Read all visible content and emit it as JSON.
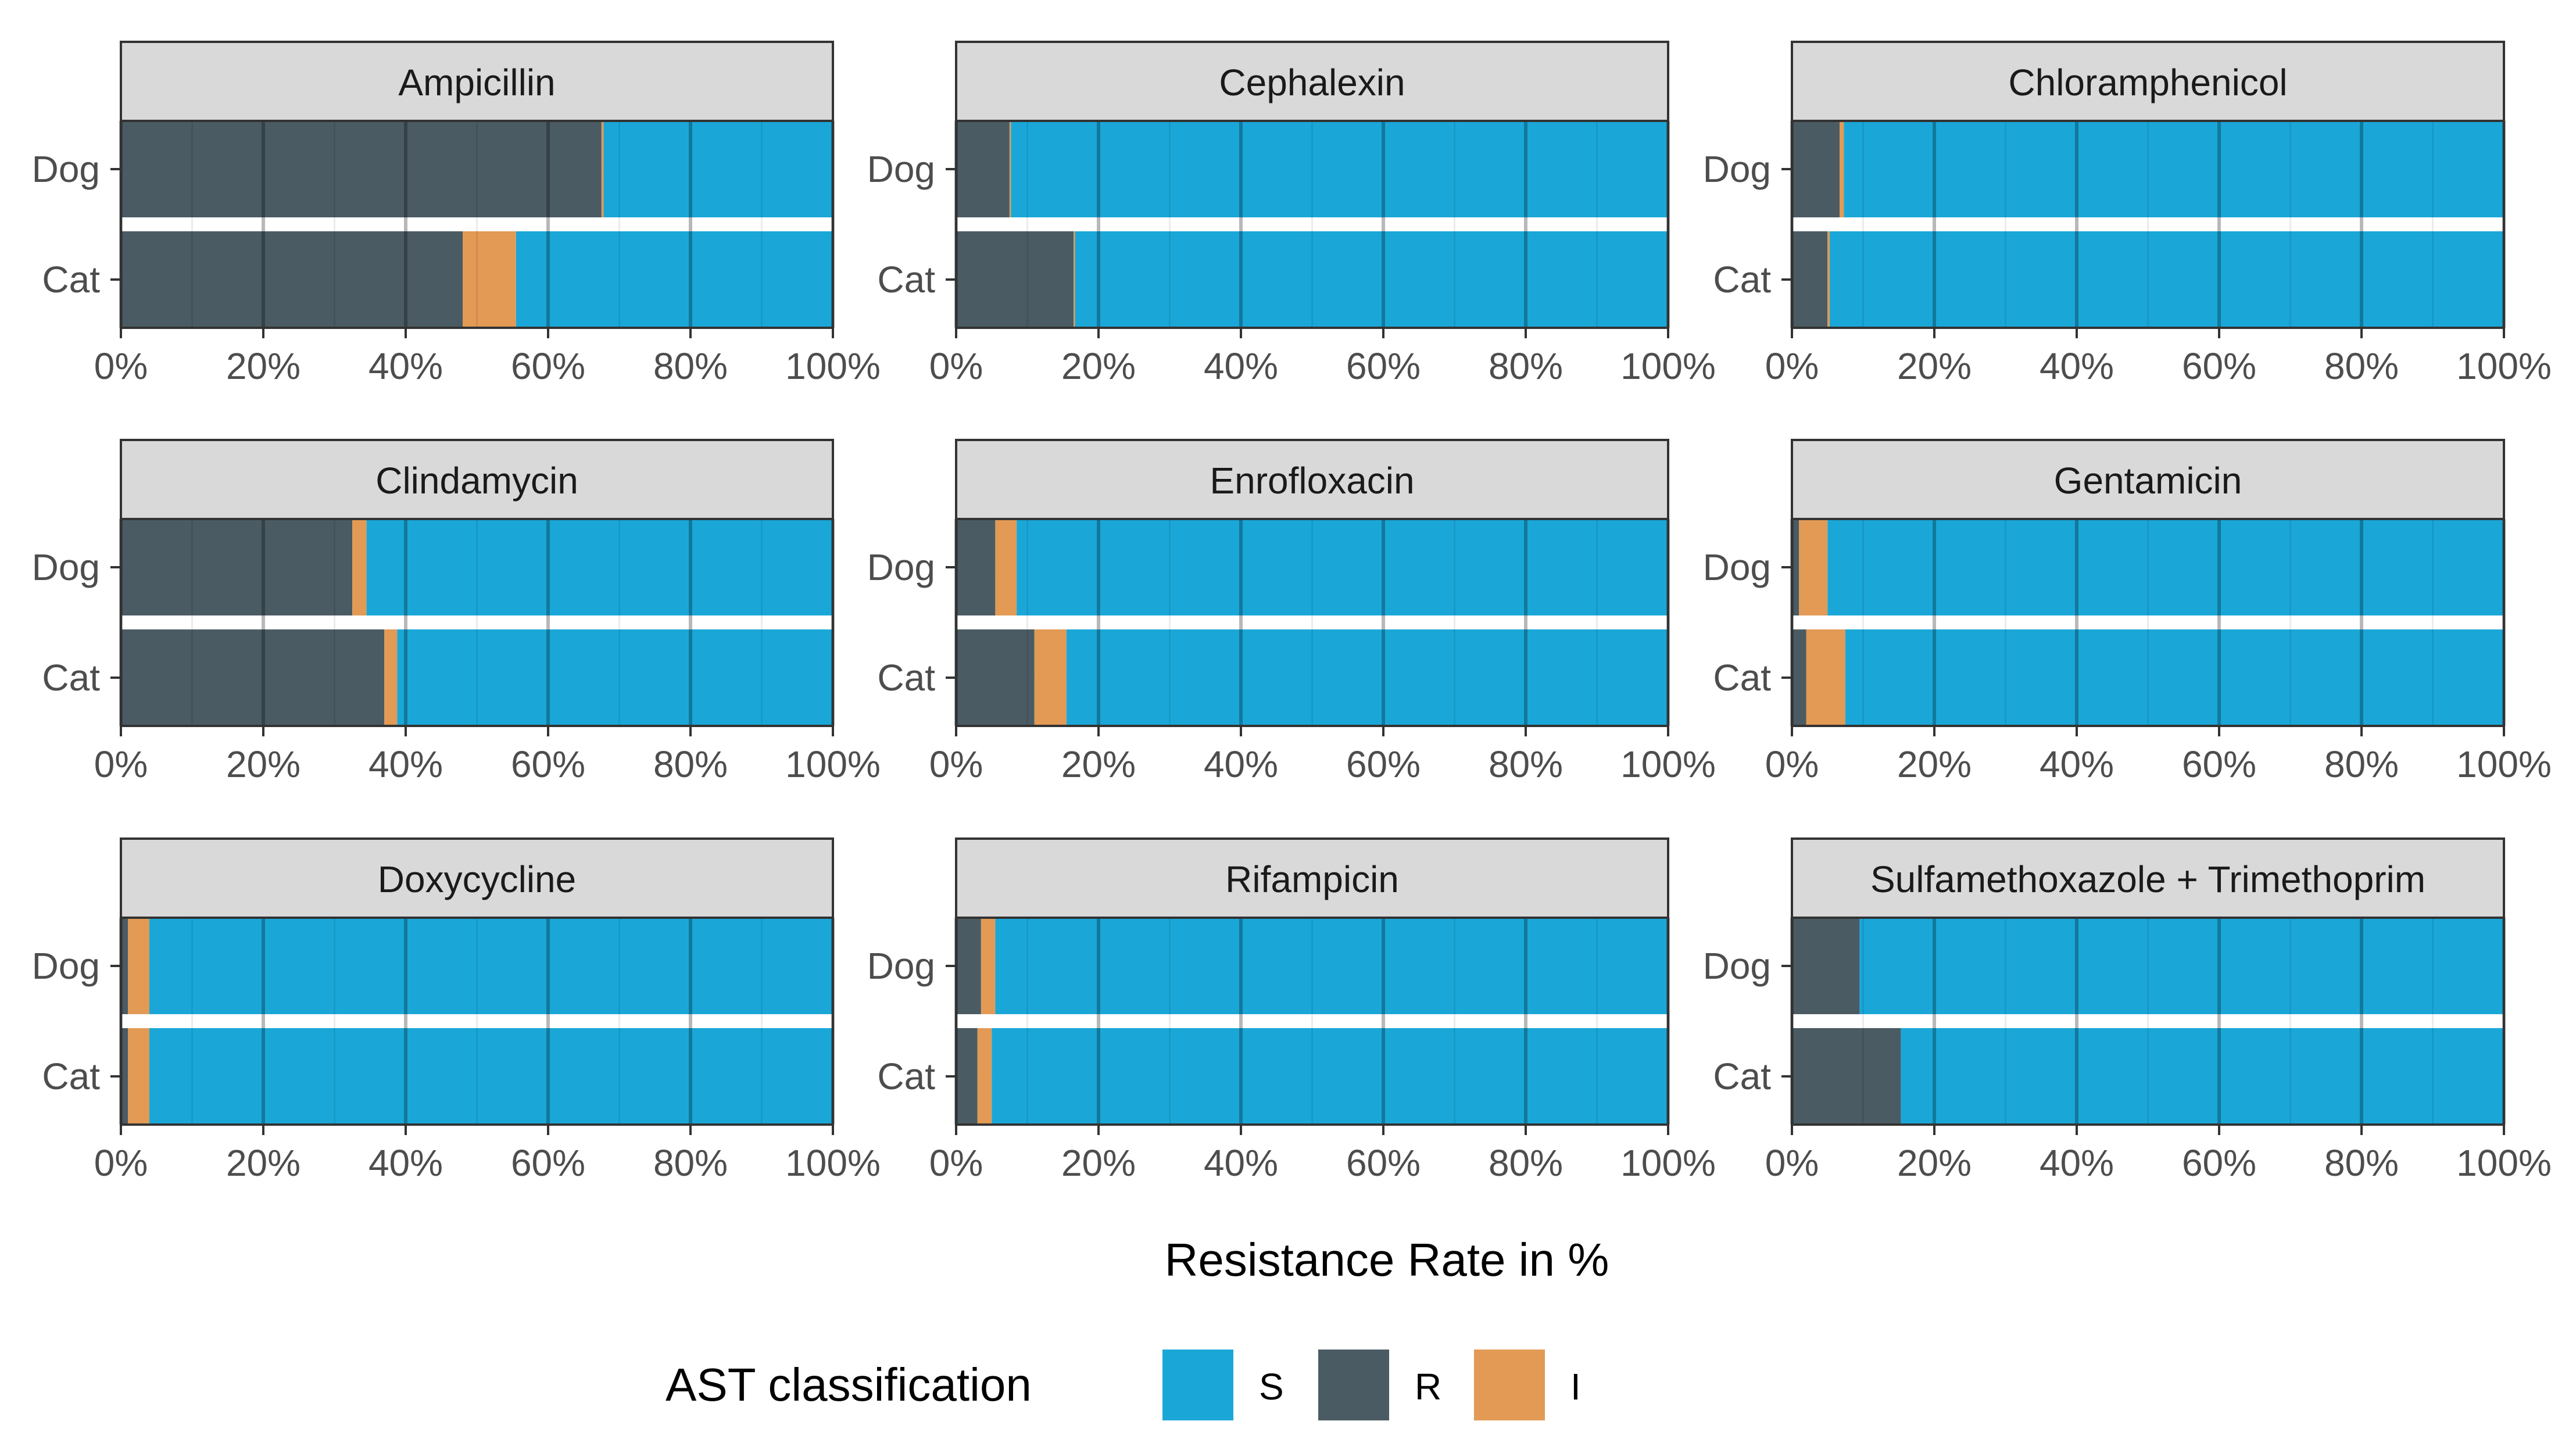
{
  "chart_data": {
    "type": "bar",
    "orientation": "horizontal",
    "stacked": true,
    "xlabel": "Resistance Rate in %",
    "ylabel": "",
    "xlim": [
      0,
      100
    ],
    "x_ticks": [
      "0%",
      "20%",
      "40%",
      "60%",
      "80%",
      "100%"
    ],
    "categories": [
      "Dog",
      "Cat"
    ],
    "stack_order": [
      "R",
      "I",
      "S"
    ],
    "colors": {
      "S": "#1aa7d8",
      "R": "#4a5b63",
      "I": "#e29a55"
    },
    "legend": {
      "title": "AST classification",
      "position": "bottom",
      "entries": [
        "S",
        "R",
        "I"
      ]
    },
    "panels": [
      {
        "title": "Ampicillin",
        "series": [
          {
            "name": "R",
            "values": [
              67.5,
              48.0
            ]
          },
          {
            "name": "I",
            "values": [
              0.3,
              7.5
            ]
          },
          {
            "name": "S",
            "values": [
              32.2,
              44.5
            ]
          }
        ]
      },
      {
        "title": "Cephalexin",
        "series": [
          {
            "name": "R",
            "values": [
              7.5,
              16.5
            ]
          },
          {
            "name": "I",
            "values": [
              0.2,
              0.2
            ]
          },
          {
            "name": "S",
            "values": [
              92.3,
              83.3
            ]
          }
        ]
      },
      {
        "title": "Chloramphenicol",
        "series": [
          {
            "name": "R",
            "values": [
              6.7,
              5.0
            ]
          },
          {
            "name": "I",
            "values": [
              0.6,
              0.3
            ]
          },
          {
            "name": "S",
            "values": [
              92.7,
              94.7
            ]
          }
        ]
      },
      {
        "title": "Clindamycin",
        "series": [
          {
            "name": "R",
            "values": [
              32.5,
              37.0
            ]
          },
          {
            "name": "I",
            "values": [
              2.0,
              1.8
            ]
          },
          {
            "name": "S",
            "values": [
              65.5,
              61.2
            ]
          }
        ]
      },
      {
        "title": "Enrofloxacin",
        "series": [
          {
            "name": "R",
            "values": [
              5.5,
              11.0
            ]
          },
          {
            "name": "I",
            "values": [
              3.0,
              4.5
            ]
          },
          {
            "name": "S",
            "values": [
              91.5,
              84.5
            ]
          }
        ]
      },
      {
        "title": "Gentamicin",
        "series": [
          {
            "name": "R",
            "values": [
              1.0,
              2.0
            ]
          },
          {
            "name": "I",
            "values": [
              4.0,
              5.5
            ]
          },
          {
            "name": "S",
            "values": [
              95.0,
              92.5
            ]
          }
        ]
      },
      {
        "title": "Doxycycline",
        "series": [
          {
            "name": "R",
            "values": [
              1.0,
              1.0
            ]
          },
          {
            "name": "I",
            "values": [
              3.0,
              3.0
            ]
          },
          {
            "name": "S",
            "values": [
              96.0,
              96.0
            ]
          }
        ]
      },
      {
        "title": "Rifampicin",
        "series": [
          {
            "name": "R",
            "values": [
              3.5,
              3.0
            ]
          },
          {
            "name": "I",
            "values": [
              2.0,
              2.0
            ]
          },
          {
            "name": "S",
            "values": [
              94.5,
              95.0
            ]
          }
        ]
      },
      {
        "title": "Sulfamethoxazole + Trimethoprim",
        "series": [
          {
            "name": "R",
            "values": [
              9.5,
              15.3
            ]
          },
          {
            "name": "I",
            "values": [
              0.0,
              0.0
            ]
          },
          {
            "name": "S",
            "values": [
              90.5,
              84.7
            ]
          }
        ]
      }
    ]
  }
}
